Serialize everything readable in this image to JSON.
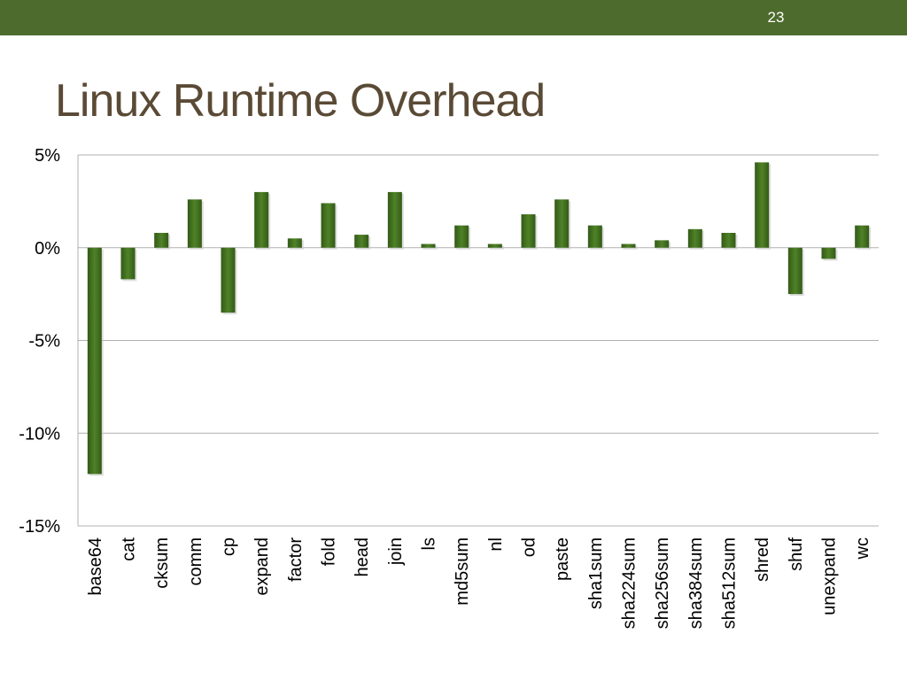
{
  "slide": {
    "number": "23",
    "title": "Linux Runtime Overhead"
  },
  "colors": {
    "top_bar": "#4d6b2c",
    "title": "#5a4a35",
    "bar": "#3f6b1f",
    "bar_highlight": "#5a8a30",
    "gridline": "#b0b0b0"
  },
  "chart_data": {
    "type": "bar",
    "title": "",
    "xlabel": "",
    "ylabel": "",
    "ylim": [
      -15,
      5
    ],
    "y_ticks": [
      5,
      0,
      -5,
      -10,
      -15
    ],
    "y_tick_labels": [
      "5%",
      "0%",
      "-5%",
      "-10%",
      "-15%"
    ],
    "grid": true,
    "legend": "none",
    "categories": [
      "base64",
      "cat",
      "cksum",
      "comm",
      "cp",
      "expand",
      "factor",
      "fold",
      "head",
      "join",
      "ls",
      "md5sum",
      "nl",
      "od",
      "paste",
      "sha1sum",
      "sha224sum",
      "sha256sum",
      "sha384sum",
      "sha512sum",
      "shred",
      "shuf",
      "unexpand",
      "wc"
    ],
    "values": [
      -12.2,
      -1.7,
      0.8,
      2.6,
      -3.5,
      3.0,
      0.5,
      2.4,
      0.7,
      3.0,
      0.2,
      1.2,
      0.2,
      1.8,
      2.6,
      1.2,
      0.2,
      0.4,
      1.0,
      0.8,
      4.6,
      -2.5,
      -0.6,
      1.2
    ]
  }
}
